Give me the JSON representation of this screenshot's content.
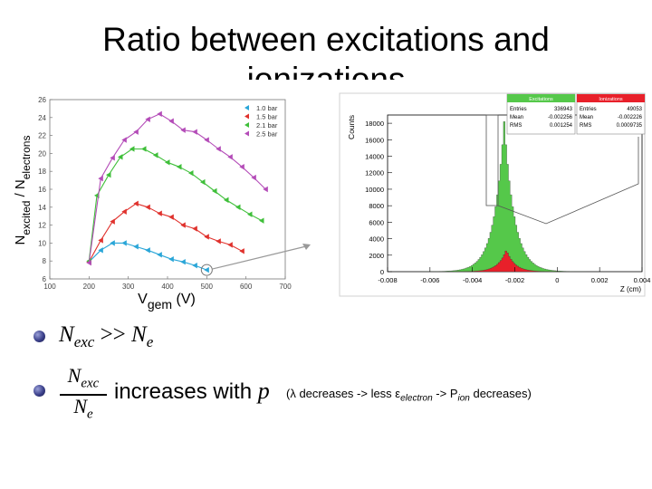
{
  "slide": {
    "title_line1": "Ratio between excitations and",
    "title_line2": "ionizations",
    "bullet1": {
      "lhs": "N",
      "lhs_sub": "exc",
      "op": " >> ",
      "rhs": "N",
      "rhs_sub": "e"
    },
    "bullet2": {
      "num": "N",
      "num_sub": "exc",
      "den": "N",
      "den_sub": "e",
      "text": "increases with ",
      "p": "p",
      "paren_a": "(λ decreases -> less ε",
      "paren_sub1": "electron",
      "paren_b": " -> P",
      "paren_sub2": "ion",
      "paren_c": " decreases)"
    }
  },
  "colors": {
    "series1": "#2aa6d8",
    "series2": "#e0322d",
    "series3": "#3fbf3a",
    "series4": "#b44cb8",
    "hist_exc": "#55c84a",
    "hist_ion": "#e8202a"
  },
  "chart_data": [
    {
      "type": "scatter",
      "title": "",
      "xlabel": "V",
      "xlabel_sub": "gem",
      "xlabel_unit": " (V)",
      "ylabel": "N",
      "ylabel_sub1": "excited",
      "ylabel_mid": " / N",
      "ylabel_sub2": "electrons",
      "xlim": [
        100,
        700
      ],
      "ylim": [
        6,
        26
      ],
      "xticks": [
        100,
        200,
        300,
        400,
        500,
        600,
        700
      ],
      "yticks": [
        6,
        8,
        10,
        12,
        14,
        16,
        18,
        20,
        22,
        24,
        26
      ],
      "legend_position": "top-right",
      "series": [
        {
          "name": "1.0 bar",
          "marker": "triangle",
          "x": [
            200,
            230,
            260,
            290,
            320,
            350,
            380,
            410,
            440,
            470,
            500
          ],
          "y": [
            7.9,
            9.2,
            10.0,
            10.0,
            9.6,
            9.2,
            8.7,
            8.2,
            7.9,
            7.5,
            7.0
          ]
        },
        {
          "name": "1.5 bar",
          "marker": "triangle",
          "x": [
            200,
            230,
            260,
            290,
            320,
            350,
            380,
            410,
            440,
            470,
            500,
            530,
            560,
            590
          ],
          "y": [
            7.9,
            10.3,
            12.4,
            13.5,
            14.4,
            14.0,
            13.3,
            12.9,
            12.0,
            11.6,
            10.7,
            10.2,
            9.8,
            9.1
          ]
        },
        {
          "name": "2.1 bar",
          "marker": "triangle",
          "x": [
            200,
            220,
            250,
            280,
            310,
            340,
            370,
            400,
            430,
            460,
            490,
            520,
            550,
            580,
            610,
            640
          ],
          "y": [
            8.0,
            15.3,
            17.6,
            19.6,
            20.5,
            20.5,
            19.8,
            19.0,
            18.5,
            17.8,
            16.8,
            15.8,
            14.8,
            14.0,
            13.2,
            12.5
          ]
        },
        {
          "name": "2.5 bar",
          "marker": "triangle",
          "x": [
            200,
            230,
            260,
            290,
            320,
            350,
            380,
            410,
            440,
            470,
            500,
            530,
            560,
            590,
            620,
            650
          ],
          "y": [
            7.8,
            17.2,
            19.5,
            21.5,
            22.4,
            23.8,
            24.4,
            23.6,
            22.6,
            22.4,
            21.5,
            20.5,
            19.6,
            18.5,
            17.3,
            16.0
          ]
        }
      ],
      "annotation": "circled point at 500 V, 1.0 bar"
    },
    {
      "type": "histogram",
      "xlabel": "Z (cm)",
      "ylabel": "Counts",
      "xlim": [
        -0.008,
        0.004
      ],
      "ylim": [
        0,
        19000
      ],
      "xticks": [
        -0.008,
        -0.006,
        -0.004,
        -0.002,
        0,
        0.002,
        0.004
      ],
      "xtick_labels": [
        "-0.008",
        "-0.006",
        "-0.004",
        "-0.002",
        "0",
        "0.002",
        "0.004"
      ],
      "yticks": [
        0,
        2000,
        4000,
        6000,
        8000,
        10000,
        12000,
        14000,
        16000,
        18000
      ],
      "series": [
        {
          "name": "Excitations",
          "stats": {
            "Entries": "336943",
            "Mean": "-0.002256",
            "RMS": "0.001254"
          },
          "peak_x": -0.0025,
          "peak_y": 18200,
          "width": 0.00055
        },
        {
          "name": "Ionizations",
          "stats": {
            "Entries": "49053",
            "Mean": "-0.002226",
            "RMS": "0.0009735"
          },
          "peak_x": -0.0024,
          "peak_y": 2650,
          "width": 0.00045
        }
      ]
    }
  ]
}
